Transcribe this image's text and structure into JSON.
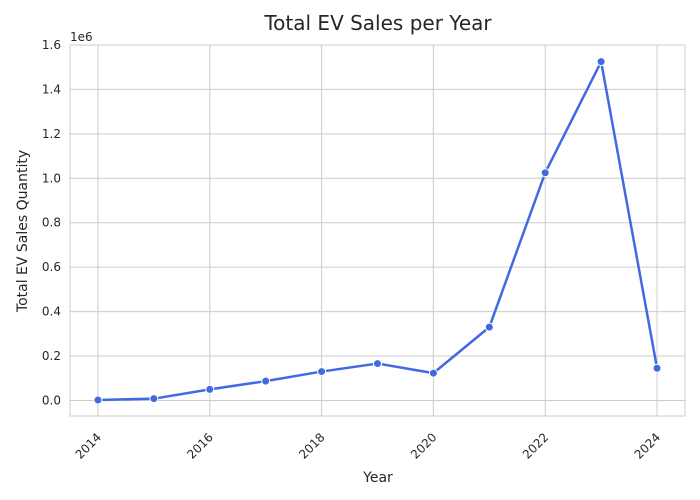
{
  "chart_data": {
    "type": "line",
    "title": "Total EV Sales per Year",
    "xlabel": "Year",
    "ylabel": "Total EV Sales Quantity",
    "y_offset_label": "1e6",
    "x": [
      2014,
      2015,
      2016,
      2017,
      2018,
      2019,
      2020,
      2021,
      2022,
      2023,
      2024
    ],
    "series": [
      {
        "values": [
          2000,
          8000,
          50000,
          87000,
          130000,
          166000,
          123000,
          330000,
          1025000,
          1525000,
          145000
        ],
        "color": "#4169e1"
      }
    ],
    "x_ticks": [
      2014,
      2016,
      2018,
      2020,
      2022,
      2024
    ],
    "x_tick_labels": [
      "2014",
      "2016",
      "2018",
      "2020",
      "2022",
      "2024"
    ],
    "y_ticks": [
      0,
      200000,
      400000,
      600000,
      800000,
      1000000,
      1200000,
      1400000,
      1600000
    ],
    "y_tick_labels": [
      "0.0",
      "0.2",
      "0.4",
      "0.6",
      "0.8",
      "1.0",
      "1.2",
      "1.4",
      "1.6"
    ],
    "xlim": [
      2013.5,
      2024.5
    ],
    "ylim": [
      -70000,
      1600000
    ],
    "grid": true,
    "legend": "none",
    "colors": {
      "grid": "#cccccc",
      "axes": "#cccccc",
      "text": "#262626"
    }
  }
}
